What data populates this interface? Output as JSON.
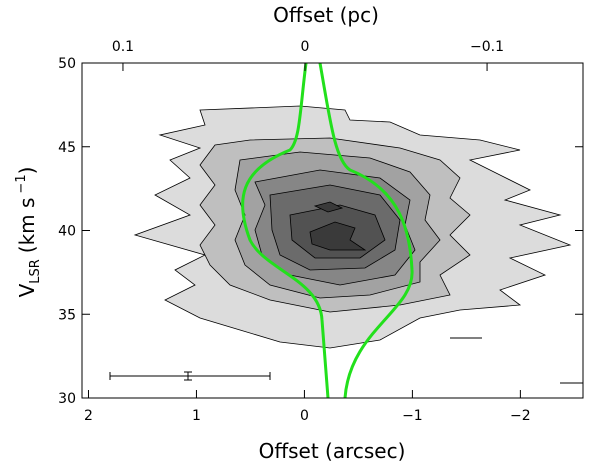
{
  "chart_data": {
    "type": "pv-diagram",
    "x_label": "Offset (arcsec)",
    "x2_label": "Offset (pc)",
    "y_label_parts": [
      "V",
      "LSR",
      "(km s",
      "−1",
      ")"
    ],
    "xlim": [
      2.06,
      -2.58
    ],
    "xticks": [
      2,
      1,
      0,
      {
        "value": -1,
        "label": "−1"
      },
      {
        "value": -2,
        "label": "−2"
      }
    ],
    "x2lim": [
      0.1225,
      -0.1527
    ],
    "x2ticks": [
      0.1,
      0,
      {
        "value": -0.1,
        "label": "−0.1"
      }
    ],
    "ylim": [
      30,
      50
    ],
    "yticks": [
      30,
      35,
      40,
      45,
      50
    ]
  }
}
